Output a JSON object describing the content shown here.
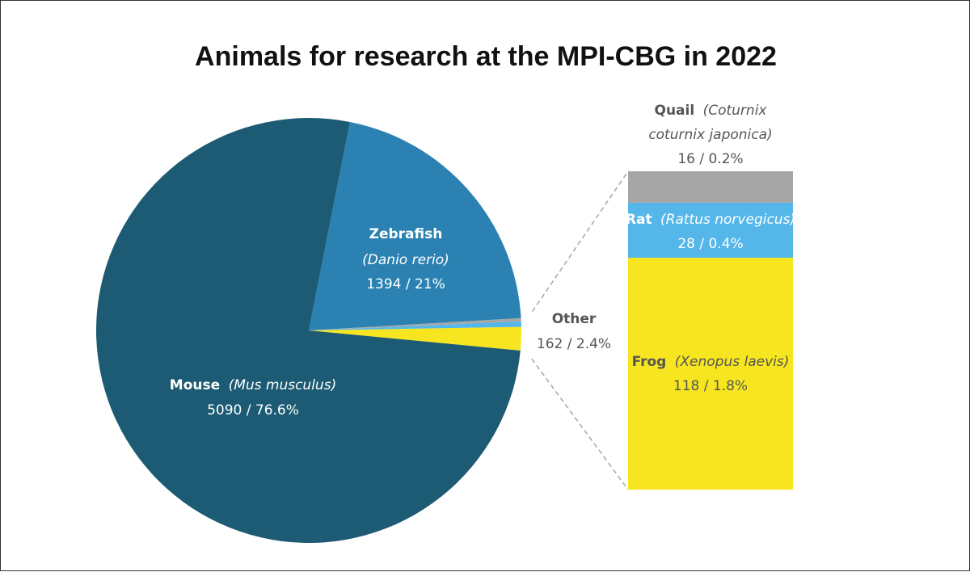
{
  "chart_data": [
    {
      "type": "pie",
      "title": "Animals for research at the MPI-CBG in 2022",
      "slices": [
        {
          "name": "Mouse",
          "latin": "(Mus musculus)",
          "value": 5090,
          "value_label": "5090 / 76.6%",
          "color": "#1c5b73"
        },
        {
          "name": "Zebrafish",
          "latin": "(Danio rerio)",
          "value": 1394,
          "value_label": "1394 / 21%",
          "color": "#2b82b2"
        },
        {
          "name": "Other",
          "latin": "",
          "value": 162,
          "value_label": "162 / 2.4%",
          "color": "#f5e61e"
        }
      ]
    },
    {
      "type": "bar",
      "stacked": true,
      "series": [
        {
          "name": "Frog",
          "latin": "(Xenopus laevis)",
          "value": 118,
          "value_label": "118 / 1.8%",
          "color": "#f7e61f"
        },
        {
          "name": "Rat",
          "latin": "(Rattus norvegicus)",
          "value": 28,
          "value_label": "28 / 0.4%",
          "color": "#55b6ea"
        },
        {
          "name": "Quail",
          "latin_line1": "(Coturnix",
          "latin_line2": "coturnix japonica)",
          "value": 16,
          "value_label": "16 / 0.2%",
          "color": "#a6a6a6"
        }
      ]
    }
  ]
}
